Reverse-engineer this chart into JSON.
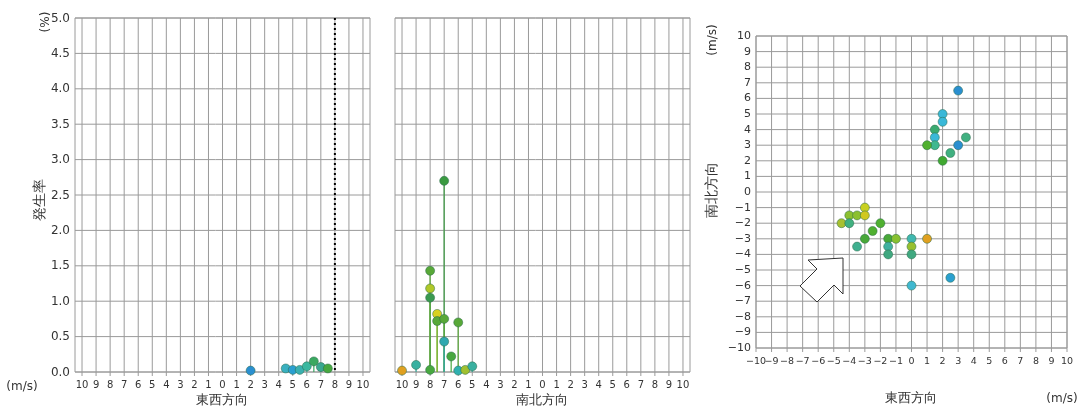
{
  "chart_data": [
    {
      "type": "lollipop",
      "ylabel": "発生率",
      "xlabel": "東西方向",
      "annotations": [
        "(%)",
        "(m/s)"
      ],
      "xlim": [
        10.5,
        0.5
      ],
      "xticks": [
        10,
        9,
        8,
        7,
        6,
        5,
        4,
        3,
        2,
        1
      ],
      "ylim": [
        0,
        5
      ],
      "yticks": [
        {
          "value": 0,
          "label": "0.0"
        },
        0.5,
        {
          "value": 1,
          "label": "1.0"
        },
        1.5,
        {
          "value": 2,
          "label": "2.0"
        },
        2.5,
        {
          "value": 3,
          "label": "3.0"
        },
        3.5,
        {
          "value": 4,
          "label": "4.0"
        },
        4.5,
        {
          "value": 5,
          "label": "5.0"
        }
      ],
      "grid": true
    },
    {
      "type": "lollipop",
      "tick_labels": "x",
      "x": [
        2,
        4.5,
        5,
        5.5,
        6,
        6.5,
        7,
        7.5
      ],
      "values": [
        0.02,
        0.05,
        0.03,
        0.03,
        0.08,
        0.15,
        0.07,
        0.05
      ],
      "colors": [
        "#2a8fd0",
        "#3ab0c0",
        "#2a9fd0",
        "#3ab0b0",
        "#3ab8a0",
        "#3aa860",
        "#3aa890",
        "#48a840"
      ],
      "xlim": [
        -0.5,
        10.5
      ],
      "xticks": [
        0,
        1,
        2,
        3,
        4,
        5,
        6,
        7,
        8,
        9,
        10
      ],
      "ylim": [
        0,
        5
      ],
      "yticks": [
        0,
        0.5,
        1,
        1.5,
        2,
        2.5,
        3,
        3.5,
        4,
        4.5,
        5
      ],
      "grid": true,
      "marker": "circle",
      "ref_lines": [
        {
          "axis": "x",
          "value": 8,
          "color": "#000000",
          "line_style": "dotted"
        }
      ]
    },
    {
      "type": "lollipop",
      "xlabel": "南北方向",
      "tick_labels": "x",
      "x": [
        10,
        9,
        8,
        8,
        8,
        8,
        7.5,
        7.5,
        7,
        7,
        7,
        6.5,
        6,
        6,
        5.5,
        5
      ],
      "values": [
        0.02,
        0.1,
        0.03,
        1.43,
        1.18,
        1.05,
        0.82,
        0.72,
        2.7,
        0.75,
        0.43,
        0.22,
        0.7,
        0.02,
        0.03,
        0.08
      ],
      "colors": [
        "#e0a020",
        "#3ab0a0",
        "#48a840",
        "#58a838",
        "#b0c828",
        "#3a9a50",
        "#d8d020",
        "#58a838",
        "#3a9a40",
        "#58a838",
        "#30a8b0",
        "#48a840",
        "#58a838",
        "#30b0b0",
        "#a0c030",
        "#3ab0a0"
      ],
      "xlim": [
        10.5,
        0.5
      ],
      "xticks": [
        10,
        9,
        8,
        7,
        6,
        5,
        4,
        3,
        2,
        1
      ],
      "ylim": [
        0,
        5
      ],
      "yticks": [
        0,
        0.5,
        1,
        1.5,
        2,
        2.5,
        3,
        3.5,
        4,
        4.5,
        5
      ],
      "grid": true,
      "marker": "circle"
    },
    {
      "type": "lollipop",
      "tick_labels": "x",
      "xlim": [
        -0.5,
        10.5
      ],
      "xticks": [
        0,
        1,
        2,
        3,
        4,
        5,
        6,
        7,
        8,
        9,
        10
      ],
      "ylim": [
        0,
        5
      ],
      "yticks": [
        0,
        0.5,
        1,
        1.5,
        2,
        2.5,
        3,
        3.5,
        4,
        4.5,
        5
      ],
      "grid": true
    },
    {
      "type": "scatter",
      "xlabel": "東西方向",
      "ylabel": "南北方向",
      "annotations": [
        "(m/s)",
        "(m/s)"
      ],
      "x": [
        3,
        2,
        2,
        1.5,
        1.5,
        1.5,
        1,
        3.5,
        3,
        2.5,
        2,
        -3,
        -4,
        -3.5,
        -3,
        -4.5,
        -4,
        -2,
        -2.5,
        -3,
        -3.5,
        -1.5,
        -1,
        -1.5,
        -1.5,
        0,
        0,
        0,
        0,
        1,
        2.5
      ],
      "values": [
        6.5,
        5,
        4.5,
        4,
        3.5,
        3,
        3,
        3.5,
        3,
        2.5,
        2,
        -1,
        -1.5,
        -1.5,
        -1.5,
        -2,
        -2,
        -2,
        -2.5,
        -3,
        -3.5,
        -3,
        -3,
        -3.5,
        -4,
        -3,
        -3.5,
        -4,
        -6,
        -3,
        -5.5
      ],
      "colors": [
        "#2a8fd0",
        "#3ab8d8",
        "#3ab8d8",
        "#3aaa70",
        "#3ab8d8",
        "#40b890",
        "#50b030",
        "#40b080",
        "#2a8fd0",
        "#40b080",
        "#40a830",
        "#c8d020",
        "#8cc030",
        "#8cc030",
        "#d0c820",
        "#a8c030",
        "#40b080",
        "#50b030",
        "#50b030",
        "#48a838",
        "#40b090",
        "#48a838",
        "#88c030",
        "#40b0a0",
        "#40a880",
        "#40b8b0",
        "#98c030",
        "#40a880",
        "#40b8d0",
        "#e0a020",
        "#2aa0d0"
      ],
      "xlim": [
        -10,
        10
      ],
      "xticks": [
        -10,
        -9,
        -8,
        -7,
        -6,
        -5,
        -4,
        -3,
        -2,
        -1,
        0,
        1,
        2,
        3,
        4,
        5,
        6,
        7,
        8,
        9,
        10
      ],
      "ylim": [
        -10,
        10
      ],
      "yticks": [
        -10,
        -9,
        -8,
        -7,
        -6,
        -5,
        -4,
        -3,
        -2,
        -1,
        0,
        1,
        2,
        3,
        4,
        5,
        6,
        7,
        8,
        9,
        10
      ],
      "grid": true,
      "marker": "circle"
    }
  ]
}
